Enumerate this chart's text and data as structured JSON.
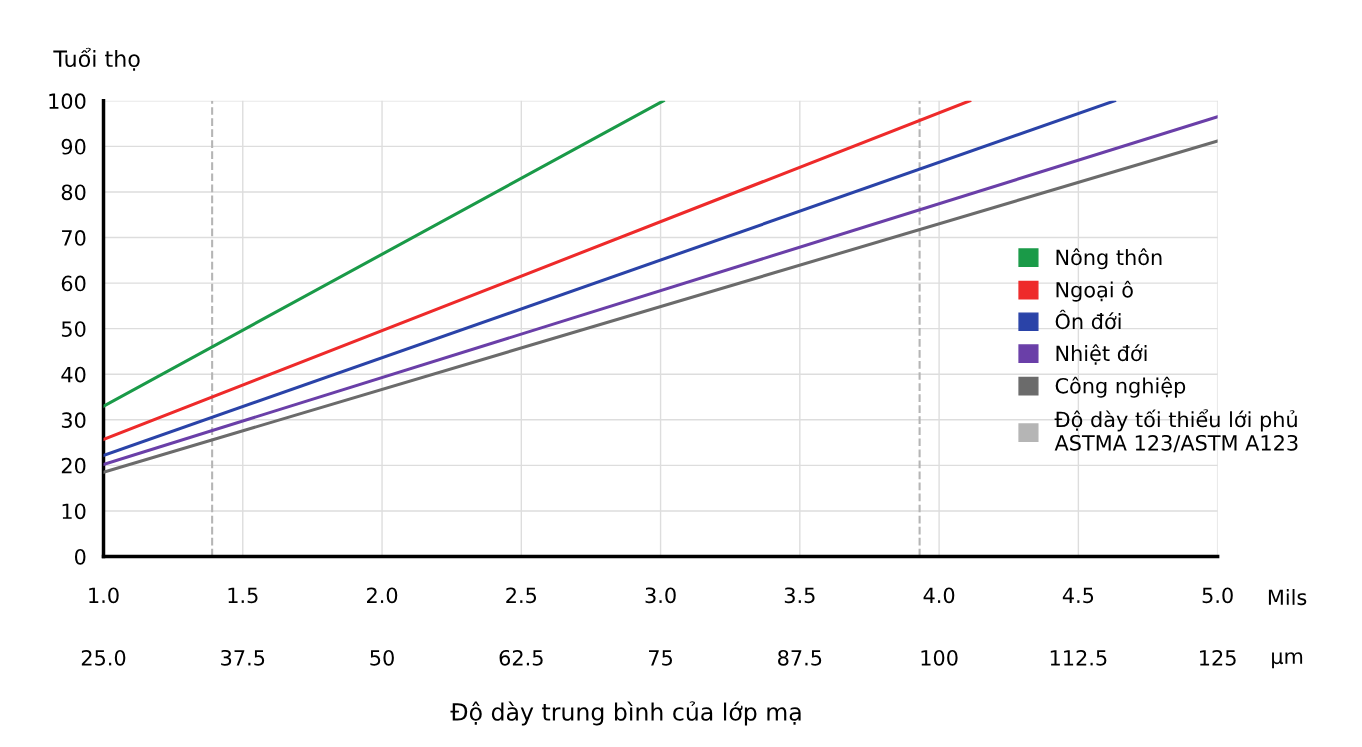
{
  "chart_data": {
    "type": "line",
    "ylabel": "Tuổi thọ",
    "xlabel": "Độ dày trung bình của lớp mạ",
    "annotations": [
      "Mils",
      "µm"
    ],
    "series": [
      {
        "name": "Nông thôn",
        "color": "#1a9a48",
        "x": [
          1.0,
          3.01
        ],
        "values": [
          33,
          100
        ]
      },
      {
        "name": "Ngoại ô",
        "color": "#ee2a2a",
        "x": [
          1.0,
          4.11
        ],
        "values": [
          25.7,
          100
        ]
      },
      {
        "name": "Ôn đới",
        "color": "#2a43a8",
        "x": [
          1.0,
          4.63
        ],
        "values": [
          22.2,
          100
        ]
      },
      {
        "name": "Nhiệt đới",
        "color": "#6a3fa8",
        "x": [
          1.0,
          5.0
        ],
        "values": [
          20.2,
          96.5
        ]
      },
      {
        "name": "Công nghiệp",
        "color": "#6b6b6b",
        "x": [
          1.0,
          5.0
        ],
        "values": [
          18.5,
          91.2
        ]
      },
      {
        "name": "Độ dày tối thiểu lới phủ\nASTMA 123/ASTM A123",
        "color": "#b5b5b5",
        "line_style": "dashed",
        "x": [
          1.39,
          1.39,
          null,
          3.93,
          3.93
        ],
        "values": [
          0,
          100,
          null,
          0,
          100
        ]
      }
    ],
    "xlim": [
      1.0,
      5.0
    ],
    "xticks": [
      {
        "value": 1.0,
        "label": "1.0"
      },
      1.5,
      {
        "value": 2.0,
        "label": "2.0"
      },
      2.5,
      {
        "value": 3.0,
        "label": "3.0"
      },
      3.5,
      {
        "value": 4.0,
        "label": "4.0"
      },
      4.5,
      {
        "value": 5.0,
        "label": "5.0"
      }
    ],
    "x2lim": [
      25.0,
      125
    ],
    "x2ticks": [
      {
        "value": 25.0,
        "label": "25.0"
      },
      37.5,
      50,
      62.5,
      75,
      87.5,
      100,
      112.5,
      125
    ],
    "ylim": [
      0,
      100
    ],
    "yticks": [
      0,
      10,
      20,
      30,
      40,
      50,
      60,
      70,
      80,
      90,
      100
    ],
    "grid": true,
    "legend": "right",
    "marker": "none",
    "line_style": "solid"
  }
}
